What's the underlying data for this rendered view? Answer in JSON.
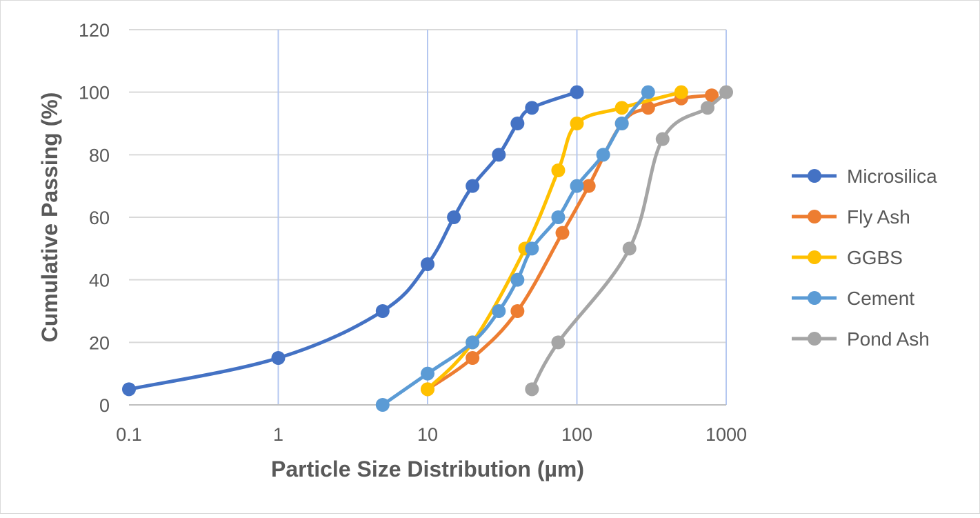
{
  "chart_data": {
    "type": "line",
    "xlabel": "Particle Size Distribution (µm)",
    "ylabel": "Cumulative Passing (%)",
    "x_scale": "log",
    "xlim": [
      0.1,
      1000
    ],
    "ylim": [
      0,
      120
    ],
    "x_ticks": [
      "0.1",
      "1",
      "10",
      "100",
      "1000"
    ],
    "y_ticks": [
      "0",
      "20",
      "40",
      "60",
      "80",
      "100",
      "120"
    ],
    "grid": true,
    "legend_position": "right",
    "series": [
      {
        "name": "Microsilica",
        "color": "#4472c4",
        "x": [
          0.1,
          1,
          5,
          10,
          15,
          20,
          30,
          40,
          50,
          100
        ],
        "y": [
          5,
          15,
          30,
          45,
          60,
          70,
          80,
          90,
          95,
          100
        ]
      },
      {
        "name": "Fly Ash",
        "color": "#ed7d31",
        "x": [
          10,
          20,
          40,
          80,
          120,
          200,
          300,
          500,
          800
        ],
        "y": [
          5,
          15,
          30,
          55,
          70,
          90,
          95,
          98,
          99
        ]
      },
      {
        "name": "GGBS",
        "color": "#ffc000",
        "x": [
          10,
          20,
          45,
          75,
          100,
          200,
          500
        ],
        "y": [
          5,
          20,
          50,
          75,
          90,
          95,
          100
        ]
      },
      {
        "name": "Cement",
        "color": "#5b9bd5",
        "x": [
          5,
          10,
          20,
          30,
          40,
          50,
          75,
          100,
          150,
          200,
          300
        ],
        "y": [
          0,
          10,
          20,
          30,
          40,
          50,
          60,
          70,
          80,
          90,
          100
        ]
      },
      {
        "name": "Pond Ash",
        "color": "#a5a5a5",
        "x": [
          50,
          75,
          225,
          375,
          750,
          1000
        ],
        "y": [
          5,
          20,
          50,
          85,
          95,
          100
        ]
      }
    ]
  }
}
